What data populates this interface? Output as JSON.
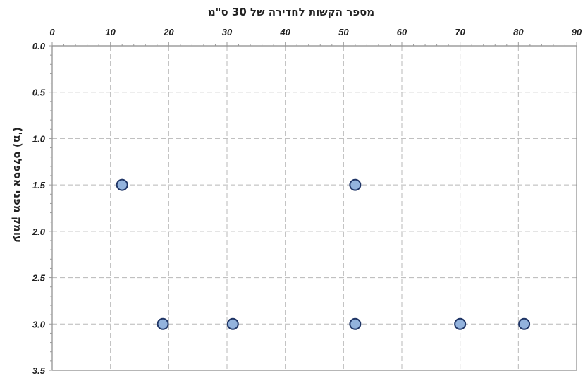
{
  "chart_data": {
    "type": "scatter",
    "xlabel": "מספר הקשות לחדירה של 30 ס\"מ",
    "ylabel": "עומק מפני אספלט (מ')",
    "x_axis_position": "top",
    "y_axis_inverted": true,
    "xlim": [
      0,
      90
    ],
    "ylim": [
      0.0,
      3.5
    ],
    "x_ticks": [
      "0",
      "10",
      "20",
      "30",
      "40",
      "50",
      "60",
      "70",
      "80",
      "90"
    ],
    "y_ticks": [
      "0.0",
      "0.5",
      "1.0",
      "1.5",
      "2.0",
      "2.5",
      "3.0",
      "3.5"
    ],
    "grid": true,
    "points": [
      {
        "x": 12,
        "y": 1.5
      },
      {
        "x": 52,
        "y": 1.5
      },
      {
        "x": 19,
        "y": 3.0
      },
      {
        "x": 31,
        "y": 3.0
      },
      {
        "x": 52,
        "y": 3.0
      },
      {
        "x": 70,
        "y": 3.0
      },
      {
        "x": 81,
        "y": 3.0
      }
    ],
    "marker_fill": "#93b3dd",
    "marker_edge": "#1f3566",
    "grid_color": "#b8b8b8"
  }
}
